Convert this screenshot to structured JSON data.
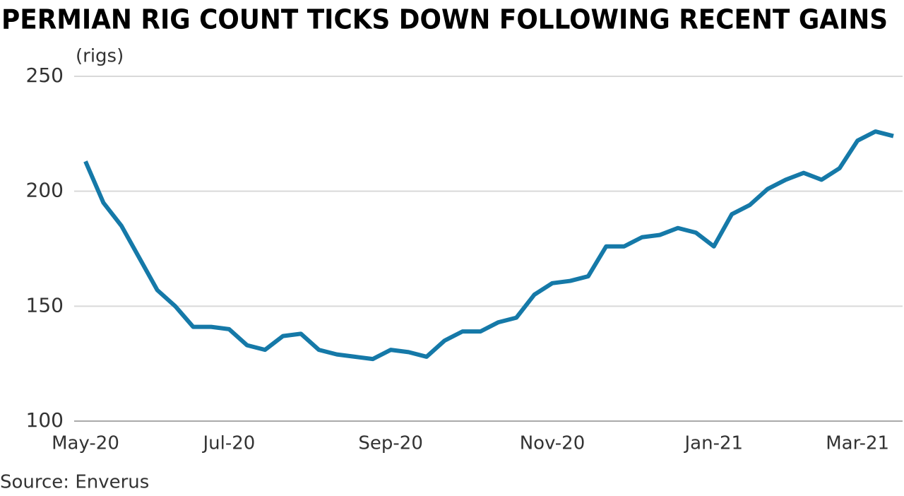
{
  "chart_data": {
    "type": "line",
    "title": "PERMIAN RIG COUNT TICKS DOWN FOLLOWING RECENT GAINS",
    "y_label": "(rigs)",
    "source": "Source: Enverus",
    "categories": [
      "May-20",
      null,
      null,
      null,
      null,
      null,
      null,
      null,
      "Jul-20",
      null,
      null,
      null,
      null,
      null,
      null,
      null,
      null,
      "Sep-20",
      null,
      null,
      null,
      null,
      null,
      null,
      null,
      null,
      "Nov-20",
      null,
      null,
      null,
      null,
      null,
      null,
      null,
      null,
      "Jan-21",
      null,
      null,
      null,
      null,
      null,
      null,
      null,
      "Mar-21",
      null,
      null
    ],
    "series": [
      {
        "name": "Permian rig count",
        "color": "#1579a8",
        "values": [
          213,
          195,
          185,
          171,
          157,
          150,
          141,
          141,
          140,
          133,
          131,
          137,
          138,
          131,
          129,
          128,
          127,
          131,
          130,
          128,
          135,
          139,
          139,
          143,
          145,
          155,
          160,
          161,
          163,
          176,
          176,
          180,
          181,
          184,
          182,
          176,
          190,
          194,
          201,
          205,
          208,
          205,
          210,
          222,
          226,
          224
        ]
      }
    ],
    "ylim": [
      100,
      250
    ],
    "yticks": [
      100,
      150,
      200,
      250
    ],
    "grid": true
  }
}
